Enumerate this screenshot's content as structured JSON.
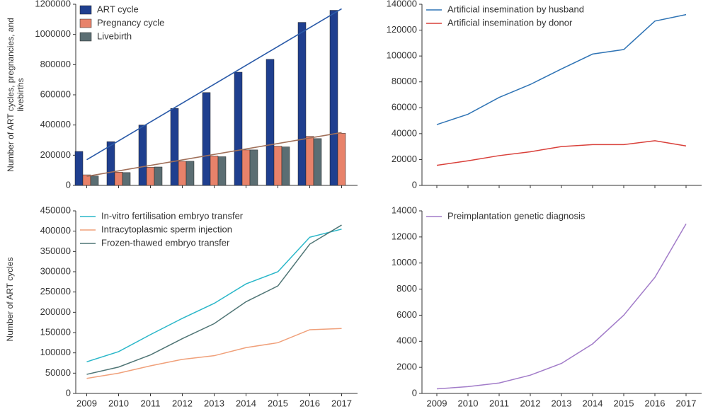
{
  "chart_data": [
    {
      "type": "bar",
      "ylabel": "Number of ART cycles, pregnancies, and livebirths",
      "ylim": [
        0,
        1200000
      ],
      "yticks": [
        0,
        200000,
        400000,
        600000,
        800000,
        1000000,
        1200000
      ],
      "legend": "upper left",
      "series": [
        {
          "name": "ART cycle",
          "color": "#1f3f8f",
          "values": [
            225000,
            290000,
            400000,
            510000,
            615000,
            750000,
            835000,
            1080000,
            1160000
          ]
        },
        {
          "name": "Pregnancy cycle",
          "color": "#e8826a",
          "values": [
            70000,
            88000,
            120000,
            160000,
            195000,
            235000,
            260000,
            325000,
            345000
          ]
        },
        {
          "name": "Livebirth",
          "color": "#5b6e73",
          "values": [
            62000,
            85000,
            122000,
            160000,
            190000,
            235000,
            255000,
            310000,
            null
          ]
        }
      ],
      "trend": [
        {
          "color": "#2a5aa8",
          "values": [
            170000,
            1170000
          ]
        },
        {
          "color": "#a0705a",
          "values": [
            60000,
            350000
          ]
        }
      ]
    },
    {
      "type": "line",
      "ylim": [
        0,
        140000
      ],
      "yticks": [
        0,
        20000,
        40000,
        60000,
        80000,
        100000,
        120000,
        140000
      ],
      "legend": "upper left",
      "series": [
        {
          "name": "Artificial insemination by husband",
          "color": "#2f74b5",
          "values": [
            47000,
            55000,
            68000,
            78000,
            90000,
            101500,
            105000,
            127000,
            132000
          ]
        },
        {
          "name": "Artificial insemination by donor",
          "color": "#d9403a",
          "values": [
            15500,
            19000,
            23000,
            26000,
            30000,
            31500,
            31500,
            34500,
            30500
          ]
        }
      ]
    },
    {
      "type": "line",
      "ylabel": "Number of ART cycles",
      "categories": [
        "2009",
        "2010",
        "2011",
        "2012",
        "2013",
        "2014",
        "2015",
        "2016",
        "2017"
      ],
      "ylim": [
        0,
        450000
      ],
      "yticks": [
        0,
        50000,
        100000,
        150000,
        200000,
        250000,
        300000,
        350000,
        400000,
        450000
      ],
      "legend": "upper left",
      "series": [
        {
          "name": "In-vitro fertilisation embryo transfer",
          "color": "#2ab7c9",
          "values": [
            78000,
            103000,
            145000,
            185000,
            222000,
            270000,
            300000,
            385000,
            405000
          ]
        },
        {
          "name": "Intracytoplasmic sperm injection",
          "color": "#f0a07a",
          "values": [
            37000,
            50000,
            68000,
            84000,
            93000,
            113000,
            125000,
            157000,
            160000
          ]
        },
        {
          "name": "Frozen-thawed embryo transfer",
          "color": "#4f7575",
          "values": [
            47000,
            65000,
            95000,
            135000,
            172000,
            226000,
            265000,
            368000,
            415000
          ]
        }
      ]
    },
    {
      "type": "line",
      "categories": [
        "2009",
        "2010",
        "2011",
        "2012",
        "2013",
        "2014",
        "2015",
        "2016",
        "2017"
      ],
      "ylim": [
        0,
        14000
      ],
      "yticks": [
        0,
        2000,
        4000,
        6000,
        8000,
        10000,
        12000,
        14000
      ],
      "legend": "upper left",
      "series": [
        {
          "name": "Preimplantation genetic diagnosis",
          "color": "#a27cc9",
          "values": [
            350,
            520,
            800,
            1400,
            2300,
            3800,
            6000,
            8900,
            13000
          ]
        }
      ]
    }
  ]
}
